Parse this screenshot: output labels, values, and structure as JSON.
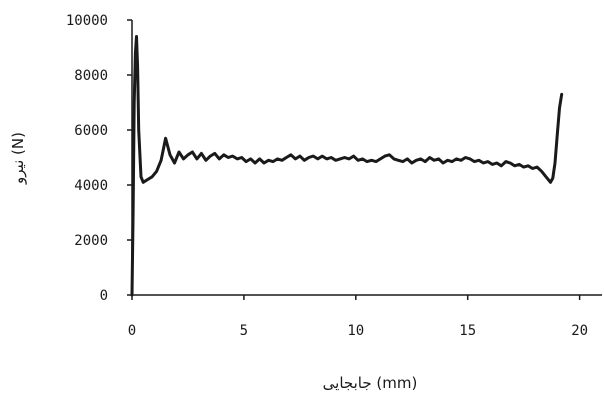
{
  "chart_data": {
    "type": "line",
    "title": "",
    "xlabel": "جابجایی (mm)",
    "ylabel": "نیرو (N)",
    "xlim": [
      0,
      21
    ],
    "ylim": [
      0,
      10000
    ],
    "x_ticks": [
      0,
      5,
      10,
      15,
      20
    ],
    "y_ticks": [
      0,
      2000,
      4000,
      6000,
      8000,
      10000
    ],
    "x_tick_labels": [
      "0",
      "5",
      "10",
      "15",
      "20"
    ],
    "y_tick_labels": [
      "0",
      "2000",
      "4000",
      "6000",
      "8000",
      "10000"
    ],
    "grid": false,
    "legend": "none",
    "line_color": "#1a1a1a",
    "series": [
      {
        "x": [
          0.0,
          0.05,
          0.1,
          0.15,
          0.2,
          0.25,
          0.3,
          0.4,
          0.5,
          0.7,
          0.9,
          1.1,
          1.3,
          1.5,
          1.7,
          1.9,
          2.1,
          2.3,
          2.5,
          2.7,
          2.9,
          3.1,
          3.3,
          3.5,
          3.7,
          3.9,
          4.1,
          4.3,
          4.5,
          4.7,
          4.9,
          5.1,
          5.3,
          5.5,
          5.7,
          5.9,
          6.1,
          6.3,
          6.5,
          6.7,
          6.9,
          7.1,
          7.3,
          7.5,
          7.7,
          7.9,
          8.1,
          8.3,
          8.5,
          8.7,
          8.9,
          9.1,
          9.3,
          9.5,
          9.7,
          9.9,
          10.1,
          10.3,
          10.5,
          10.7,
          10.9,
          11.1,
          11.3,
          11.5,
          11.7,
          11.9,
          12.1,
          12.3,
          12.5,
          12.7,
          12.9,
          13.1,
          13.3,
          13.5,
          13.7,
          13.9,
          14.1,
          14.3,
          14.5,
          14.7,
          14.9,
          15.1,
          15.3,
          15.5,
          15.7,
          15.9,
          16.1,
          16.3,
          16.5,
          16.7,
          16.9,
          17.1,
          17.3,
          17.5,
          17.7,
          17.9,
          18.1,
          18.3,
          18.5,
          18.7,
          18.8,
          18.9,
          19.0,
          19.1,
          19.2
        ],
        "y": [
          0,
          3000,
          7000,
          8800,
          9400,
          8300,
          6000,
          4300,
          4100,
          4200,
          4300,
          4500,
          4900,
          5700,
          5100,
          4800,
          5200,
          4950,
          5100,
          5200,
          4950,
          5150,
          4900,
          5050,
          5150,
          4950,
          5100,
          5000,
          5050,
          4950,
          5000,
          4850,
          4950,
          4800,
          4950,
          4800,
          4900,
          4850,
          4950,
          4900,
          5000,
          5100,
          4950,
          5050,
          4900,
          5000,
          5050,
          4950,
          5050,
          4950,
          5000,
          4900,
          4950,
          5000,
          4950,
          5050,
          4900,
          4950,
          4850,
          4900,
          4850,
          4950,
          5050,
          5100,
          4950,
          4900,
          4850,
          4950,
          4800,
          4900,
          4950,
          4850,
          5000,
          4900,
          4950,
          4800,
          4900,
          4850,
          4950,
          4900,
          5000,
          4950,
          4850,
          4900,
          4800,
          4850,
          4750,
          4800,
          4700,
          4850,
          4800,
          4700,
          4750,
          4650,
          4700,
          4600,
          4650,
          4500,
          4300,
          4100,
          4250,
          4800,
          5800,
          6800,
          7300
        ]
      }
    ]
  }
}
